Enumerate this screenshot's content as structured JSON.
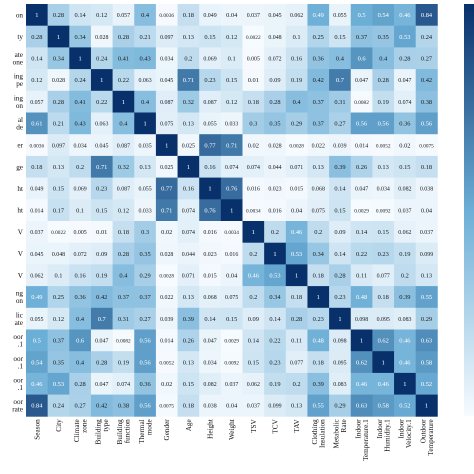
{
  "chart_data": {
    "type": "heatmap",
    "title": "",
    "xlabel": "",
    "ylabel": "",
    "row_labels": [
      "on",
      "ty",
      "ate\none",
      "ing\npe",
      "ing\non",
      "al\nde",
      "er",
      "ge",
      "ht",
      "ht",
      "V",
      "V",
      "V",
      "ng\non",
      "lic\nate",
      "oor\n.1",
      "oor\n.1",
      "oor\n.1",
      "oor\nrate"
    ],
    "col_labels": [
      "Season",
      "City",
      "Climate\nzone",
      "Building\ntype",
      "Building\nfunction",
      "Thermal\nmode",
      "Gender",
      "Age",
      "Height",
      "Weight",
      "TSV",
      "TCV",
      "TAV",
      "Clothing\nInsulation",
      "Metabolic\nRate",
      "Indoor\nTemperature.1",
      "Indoor\nHumidity.1",
      "Indoor\nVelocity.1",
      "Outdoor\nTemperature"
    ],
    "values": [
      [
        "1",
        "0.28",
        "0.14",
        "0.12",
        "0.057",
        "0.4",
        "0.0036",
        "0.18",
        "0.049",
        "0.04",
        "0.037",
        "0.045",
        "0.062",
        "0.49",
        "0.055",
        "0.5",
        "0.54",
        "0.46",
        "0.84"
      ],
      [
        "0.28",
        "1",
        "0.34",
        "0.028",
        "0.28",
        "0.21",
        "0.097",
        "0.13",
        "0.15",
        "0.12",
        "0.0022",
        "0.048",
        "0.1",
        "0.25",
        "0.15",
        "0.37",
        "0.35",
        "0.53",
        "0.24"
      ],
      [
        "0.14",
        "0.34",
        "1",
        "0.24",
        "0.41",
        "0.43",
        "0.034",
        "0.2",
        "0.069",
        "0.1",
        "0.005",
        "0.072",
        "0.16",
        "0.36",
        "0.4",
        "0.6",
        "0.4",
        "0.28",
        "0.27"
      ],
      [
        "0.12",
        "0.028",
        "0.24",
        "1",
        "0.22",
        "0.063",
        "0.045",
        "0.71",
        "0.23",
        "0.15",
        "0.01",
        "0.09",
        "0.19",
        "0.42",
        "0.7",
        "0.047",
        "0.28",
        "0.047",
        "0.42"
      ],
      [
        "0.057",
        "0.28",
        "0.41",
        "0.22",
        "1",
        "0.4",
        "0.087",
        "0.32",
        "0.087",
        "0.12",
        "0.18",
        "0.28",
        "0.4",
        "0.37",
        "0.31",
        "0.0082",
        "0.19",
        "0.074",
        "0.38"
      ],
      [
        "0.61",
        "0.21",
        "0.43",
        "0.063",
        "0.4",
        "1",
        "0.075",
        "0.13",
        "0.055",
        "0.033",
        "0.3",
        "0.35",
        "0.29",
        "0.37",
        "0.27",
        "0.56",
        "0.56",
        "0.36",
        "0.56"
      ],
      [
        "0.0036",
        "0.097",
        "0.034",
        "0.045",
        "0.087",
        "0.035",
        "1",
        "0.025",
        "0.77",
        "0.71",
        "0.02",
        "0.028",
        "0.0028",
        "0.022",
        "0.039",
        "0.014",
        "0.0052",
        "0.02",
        "0.0075"
      ],
      [
        "0.18",
        "0.13",
        "0.2",
        "0.71",
        "0.32",
        "0.13",
        "0.025",
        "1",
        "0.16",
        "0.074",
        "0.074",
        "0.044",
        "0.071",
        "0.13",
        "0.39",
        "0.26",
        "0.13",
        "0.15",
        "0.18"
      ],
      [
        "0.049",
        "0.15",
        "0.069",
        "0.23",
        "0.087",
        "0.055",
        "0.77",
        "0.16",
        "1",
        "0.76",
        "0.016",
        "0.023",
        "0.015",
        "0.068",
        "0.14",
        "0.047",
        "0.034",
        "0.082",
        "0.038"
      ],
      [
        "0.014",
        "0.17",
        "0.1",
        "0.15",
        "0.12",
        "0.033",
        "0.71",
        "0.074",
        "0.76",
        "1",
        "0.0034",
        "0.016",
        "0.04",
        "0.075",
        "0.15",
        "0.0029",
        "0.0092",
        "0.037",
        "0.04"
      ],
      [
        "0.037",
        "0.0022",
        "0.005",
        "0.01",
        "0.18",
        "0.3",
        "0.02",
        "0.074",
        "0.016",
        "0.0034",
        "1",
        "0.2",
        "0.46",
        "0.2",
        "0.09",
        "0.14",
        "0.15",
        "0.062",
        "0.037"
      ],
      [
        "0.045",
        "0.048",
        "0.072",
        "0.09",
        "0.28",
        "0.35",
        "0.028",
        "0.044",
        "0.023",
        "0.016",
        "0.2",
        "1",
        "0.53",
        "0.34",
        "0.14",
        "0.22",
        "0.23",
        "0.19",
        "0.099"
      ],
      [
        "0.062",
        "0.1",
        "0.16",
        "0.19",
        "0.4",
        "0.29",
        "0.0028",
        "0.071",
        "0.015",
        "0.04",
        "0.46",
        "0.53",
        "1",
        "0.18",
        "0.28",
        "0.11",
        "0.077",
        "0.2",
        "0.13"
      ],
      [
        "0.49",
        "0.25",
        "0.36",
        "0.42",
        "0.37",
        "0.37",
        "0.022",
        "0.13",
        "0.068",
        "0.075",
        "0.2",
        "0.34",
        "0.18",
        "1",
        "0.23",
        "0.48",
        "0.18",
        "0.39",
        "0.55"
      ],
      [
        "0.055",
        "0.12",
        "0.4",
        "0.7",
        "0.31",
        "0.27",
        "0.039",
        "0.39",
        "0.14",
        "0.15",
        "0.09",
        "0.14",
        "0.28",
        "0.23",
        "1",
        "0.098",
        "0.095",
        "0.083",
        "0.29"
      ],
      [
        "0.5",
        "0.37",
        "0.6",
        "0.047",
        "0.0082",
        "0.56",
        "0.014",
        "0.26",
        "0.047",
        "0.0029",
        "0.14",
        "0.22",
        "0.11",
        "0.48",
        "0.098",
        "1",
        "0.62",
        "0.46",
        "0.63"
      ],
      [
        "0.54",
        "0.35",
        "0.4",
        "0.28",
        "0.19",
        "0.56",
        "0.0052",
        "0.13",
        "0.034",
        "0.0092",
        "0.15",
        "0.23",
        "0.077",
        "0.18",
        "0.095",
        "0.62",
        "1",
        "0.46",
        "0.58"
      ],
      [
        "0.46",
        "0.53",
        "0.28",
        "0.047",
        "0.074",
        "0.36",
        "0.02",
        "0.15",
        "0.082",
        "0.037",
        "0.062",
        "0.19",
        "0.2",
        "0.39",
        "0.083",
        "0.46",
        "0.46",
        "1",
        "0.52"
      ],
      [
        "0.84",
        "0.24",
        "0.27",
        "0.42",
        "0.38",
        "0.56",
        "0.0075",
        "0.18",
        "0.038",
        "0.04",
        "0.037",
        "0.099",
        "0.13",
        "0.55",
        "0.29",
        "0.63",
        "0.58",
        "0.52",
        "1"
      ]
    ],
    "value_range": [
      0,
      1
    ],
    "colormap": {
      "low": "#f7fbff",
      "mid": "#6baed6",
      "high": "#08306b"
    },
    "colorbar": "right",
    "grid": false
  }
}
